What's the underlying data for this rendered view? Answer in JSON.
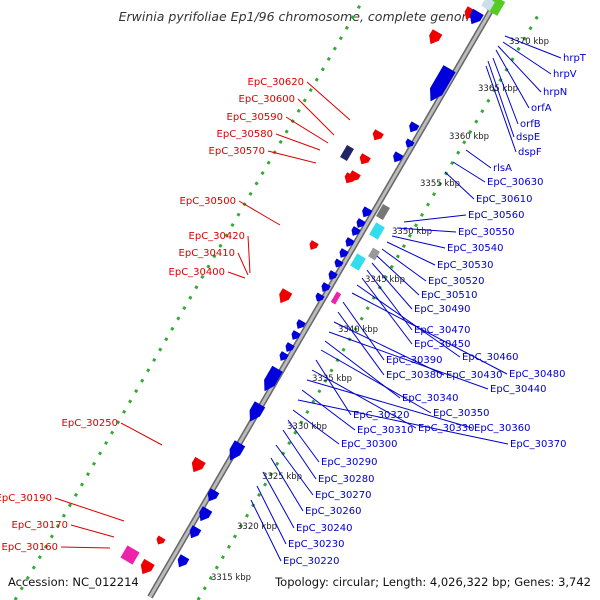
{
  "title": "Erwinia pyrifoliae Ep1/96 chromosome, complete genome",
  "footer": {
    "accession": "Accession: NC_012214",
    "summary": "Topology: circular; Length: 4,026,322 bp; Genes: 3,742"
  },
  "colors": {
    "backbone": "#999999",
    "forward_strand": "#ee0000",
    "reverse_strand": "#0000dd",
    "left_label": "#dd0000",
    "right_label": "#0000cc",
    "gc_dots": "#33aa33",
    "highlight_cyan": "#33ddee",
    "highlight_magenta": "#ee22aa",
    "highlight_green": "#55cc22",
    "highlight_navy": "#222266"
  },
  "scale_ticks": [
    "3370 kbp",
    "3365 kbp",
    "3360 kbp",
    "3355 kbp",
    "3350 kbp",
    "3345 kbp",
    "3340 kbp",
    "3335 kbp",
    "3330 kbp",
    "3325 kbp",
    "3320 kbp",
    "3315 kbp"
  ],
  "left_labels": [
    "EpC_30620",
    "EpC_30600",
    "EpC_30590",
    "EpC_30580",
    "EpC_30570",
    "EpC_30500",
    "EpC_30420",
    "EpC_30410",
    "EpC_30400",
    "EpC_30250",
    "EpC_30190",
    "EpC_30170",
    "EpC_30160"
  ],
  "right_labels": [
    "hrpT",
    "hrpV",
    "hrpN",
    "orfA",
    "orfB",
    "dspE",
    "dspF",
    "rlsA",
    "EpC_30630",
    "EpC_30610",
    "EpC_30560",
    "EpC_30550",
    "EpC_30540",
    "EpC_30530",
    "EpC_30520",
    "EpC_30510",
    "EpC_30490",
    "EpC_30470",
    "EpC_30450",
    "EpC_30460",
    "EpC_30480",
    "EpC_30390",
    "EpC_30380",
    "EpC_30430",
    "EpC_30440",
    "EpC_30340",
    "EpC_30350",
    "EpC_30320",
    "EpC_30330",
    "EpC_30360",
    "EpC_30310",
    "EpC_30370",
    "EpC_30300",
    "EpC_30290",
    "EpC_30280",
    "EpC_30270",
    "EpC_30260",
    "EpC_30240",
    "EpC_30230",
    "EpC_30220"
  ]
}
